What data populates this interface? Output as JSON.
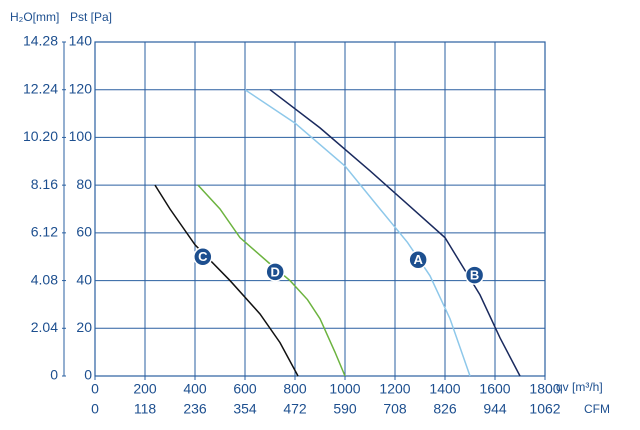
{
  "chart_data": {
    "type": "line",
    "xlabel": "qv [m³/h]",
    "x2label": "CFM",
    "ylabel": "Pst [Pa]",
    "y2label": "H₂O[mm]",
    "xlim": [
      0,
      1800
    ],
    "xticks": [
      0,
      200,
      400,
      600,
      800,
      1000,
      1200,
      1400,
      1600,
      1800
    ],
    "x2lim": [
      0,
      1062
    ],
    "x2ticks": [
      0,
      118,
      236,
      354,
      472,
      590,
      708,
      826,
      944,
      1062
    ],
    "ylim": [
      0,
      140
    ],
    "yticks": [
      0,
      20,
      40,
      60,
      80,
      100,
      120,
      140
    ],
    "y2lim": [
      0,
      14.28
    ],
    "y2ticks": [
      0,
      2.04,
      4.08,
      6.12,
      8.16,
      {
        "value": 10.2,
        "label": "10.20"
      },
      12.24,
      14.28
    ],
    "grid": true,
    "series": [
      {
        "name": "A",
        "color": "#8ec8ea",
        "x": [
          600,
          800,
          1000,
          1140,
          1250,
          1340,
          1420,
          1500
        ],
        "values": [
          120,
          106,
          88,
          70,
          56,
          42,
          24,
          0
        ]
      },
      {
        "name": "B",
        "color": "#1a2a5e",
        "x": [
          700,
          900,
          1100,
          1250,
          1400,
          1540,
          1620,
          1700
        ],
        "values": [
          120,
          104,
          86,
          72,
          58,
          34,
          16,
          0
        ]
      },
      {
        "name": "C",
        "color": "#111111",
        "x": [
          240,
          300,
          400,
          540,
          660,
          740,
          812
        ],
        "values": [
          80,
          70,
          55,
          40,
          26,
          14,
          0
        ]
      },
      {
        "name": "D",
        "color": "#6cb33f",
        "x": [
          412,
          500,
          580,
          700,
          780,
          850,
          900,
          960,
          1000
        ],
        "values": [
          80,
          70,
          58,
          47,
          40,
          32,
          24,
          10,
          0
        ]
      }
    ]
  }
}
